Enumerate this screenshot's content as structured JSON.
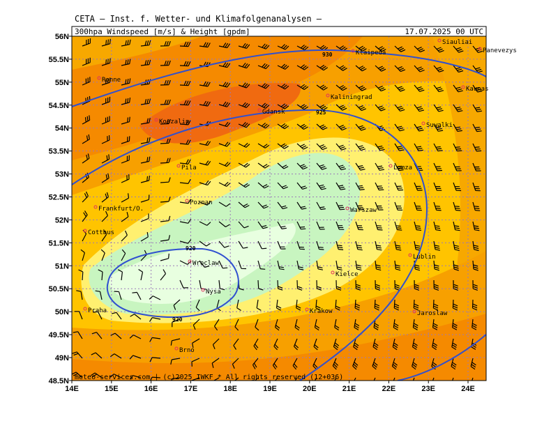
{
  "header": {
    "institute": "CETA — Inst. f. Wetter- und Klimafolgenanalysen —",
    "product": "300hpa Windspeed [m/s] & Height [gpdm]",
    "valid": "17.07.2025 00 UTC"
  },
  "map": {
    "lat_labels": [
      "56N",
      "55.5N",
      "55N",
      "54.5N",
      "54N",
      "53.5N",
      "53N",
      "52.5N",
      "52N",
      "51.5N",
      "51N",
      "50.5N",
      "50N",
      "49.5N",
      "49N",
      "48.5N"
    ],
    "lon_labels": [
      "14E",
      "15E",
      "16E",
      "17E",
      "18E",
      "19E",
      "20E",
      "21E",
      "22E",
      "23E",
      "24E"
    ],
    "cities": [
      "Siauliai",
      "Panevezys",
      "Klaipeda",
      "Ronne",
      "Kaunas",
      "Kaliningrad",
      "Gdansk",
      "Koszalin",
      "Suwalki",
      "Lomza",
      "Pila",
      "Poznan",
      "Frankfurt/O.",
      "Cottbus",
      "Warszaw",
      "Lublin",
      "Wroclaw",
      "Kielce",
      "Nysa",
      "Krakow",
      "Praha",
      "Jaroslaw",
      "Brno"
    ],
    "contour_labels": [
      "930",
      "925",
      "920",
      "920"
    ]
  },
  "footer": {
    "copyright": "meteo-services.com | (c)2025 IWKF * All rights reserved (12+036)"
  }
}
